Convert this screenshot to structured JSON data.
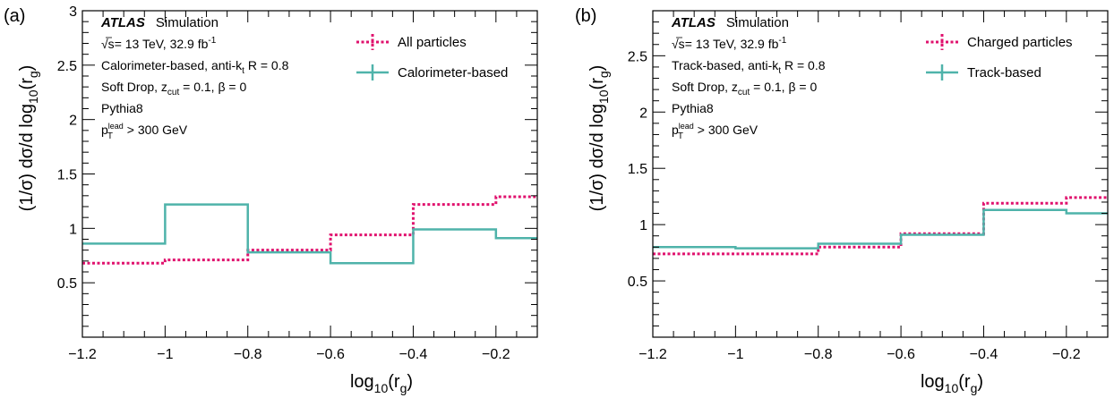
{
  "colors": {
    "reference": "#e0126e",
    "reconstructed": "#4fb3aa",
    "axis": "#000000"
  },
  "chart_data": [
    {
      "type": "line",
      "panel_label": "(a)",
      "xlabel_main": "log",
      "xlabel_sub": "10",
      "xlabel_open": "(r",
      "xlabel_sub2": "g",
      "xlabel_close": ")",
      "ylabel_prefix": "(1/σ) dσ/d log",
      "ylabel_sub": "10",
      "ylabel_mid": "(r",
      "ylabel_sub2": "g",
      "ylabel_suffix": ")",
      "xlim": [
        -1.2,
        -0.1
      ],
      "ylim": [
        0,
        3
      ],
      "x_ticks": [
        -1.2,
        -1.0,
        -0.8,
        -0.6,
        -0.4,
        -0.2
      ],
      "x_tick_labels": [
        "−1.2",
        "−1",
        "−0.8",
        "−0.6",
        "−0.4",
        "−0.2"
      ],
      "y_ticks": [
        0.5,
        1.0,
        1.5,
        2.0,
        2.5,
        3.0
      ],
      "y_tick_labels": [
        "0.5",
        "1",
        "1.5",
        "2",
        "2.5",
        "3"
      ],
      "bin_edges": [
        -1.2,
        -1.0,
        -0.8,
        -0.6,
        -0.4,
        -0.2,
        -0.1
      ],
      "series": [
        {
          "name": "All particles",
          "style": "dashed",
          "color_key": "reference",
          "values": [
            0.68,
            0.71,
            0.8,
            0.94,
            1.22,
            1.29
          ]
        },
        {
          "name": "Calorimeter-based",
          "style": "solid",
          "color_key": "reconstructed",
          "values": [
            0.86,
            1.22,
            0.78,
            0.68,
            0.99,
            0.91
          ]
        }
      ],
      "annotations": {
        "atlas": "ATLAS",
        "simulation": "Simulation",
        "energy_sqrt": "√s",
        "energy_rest": "= 13 TeV, 32.9 fb",
        "energy_sup": "-1",
        "algo_prefix": "Calorimeter-based, anti-k",
        "algo_sub": "t",
        "algo_suffix": " R = 0.8",
        "sd_prefix": "Soft Drop, z",
        "sd_sub": "cut",
        "sd_suffix": " = 0.1, β = 0",
        "generator": "Pythia8",
        "pt_p": "p",
        "pt_sup": "lead",
        "pt_sub": "T",
        "pt_suffix": " > 300 GeV"
      }
    },
    {
      "type": "line",
      "panel_label": "(b)",
      "xlabel_main": "log",
      "xlabel_sub": "10",
      "xlabel_open": "(r",
      "xlabel_sub2": "g",
      "xlabel_close": ")",
      "ylabel_prefix": "(1/σ) dσ/d log",
      "ylabel_sub": "10",
      "ylabel_mid": "(r",
      "ylabel_sub2": "g",
      "ylabel_suffix": ")",
      "xlim": [
        -1.2,
        -0.1
      ],
      "ylim": [
        0,
        2.9
      ],
      "x_ticks": [
        -1.2,
        -1.0,
        -0.8,
        -0.6,
        -0.4,
        -0.2
      ],
      "x_tick_labels": [
        "−1.2",
        "−1",
        "−0.8",
        "−0.6",
        "−0.4",
        "−0.2"
      ],
      "y_ticks": [
        0.5,
        1.0,
        1.5,
        2.0,
        2.5
      ],
      "y_tick_labels": [
        "0.5",
        "1",
        "1.5",
        "2",
        "2.5"
      ],
      "bin_edges": [
        -1.2,
        -1.0,
        -0.8,
        -0.6,
        -0.4,
        -0.2,
        -0.1
      ],
      "series": [
        {
          "name": "Charged particles",
          "style": "dashed",
          "color_key": "reference",
          "values": [
            0.74,
            0.74,
            0.8,
            0.92,
            1.19,
            1.24
          ]
        },
        {
          "name": "Track-based",
          "style": "solid",
          "color_key": "reconstructed",
          "values": [
            0.8,
            0.79,
            0.83,
            0.91,
            1.13,
            1.1
          ]
        }
      ],
      "annotations": {
        "atlas": "ATLAS",
        "simulation": "Simulation",
        "energy_sqrt": "√s",
        "energy_rest": "= 13 TeV, 32.9 fb",
        "energy_sup": "-1",
        "algo_prefix": "Track-based, anti-k",
        "algo_sub": "t",
        "algo_suffix": " R = 0.8",
        "sd_prefix": "Soft Drop, z",
        "sd_sub": "cut",
        "sd_suffix": " = 0.1, β = 0",
        "generator": "Pythia8",
        "pt_p": "p",
        "pt_sup": "lead",
        "pt_sub": "T",
        "pt_suffix": " > 300 GeV"
      }
    }
  ]
}
